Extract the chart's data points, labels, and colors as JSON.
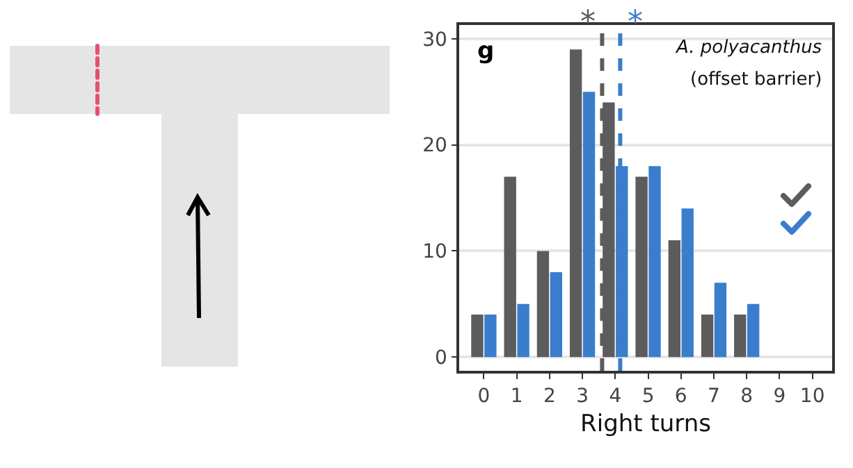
{
  "chart_data": {
    "type": "bar",
    "xlabel": "Right turns",
    "x": [
      0,
      1,
      2,
      3,
      4,
      5,
      6,
      7,
      8
    ],
    "series": [
      {
        "color": "#5c5c5c",
        "values": [
          4,
          17,
          10,
          29,
          24,
          17,
          11,
          4,
          4
        ]
      },
      {
        "color": "#3a7dcc",
        "values": [
          4,
          5,
          8,
          25,
          18,
          18,
          14,
          7,
          5
        ]
      }
    ],
    "xlim": [
      -0.75,
      10.6
    ],
    "xticks": [
      0,
      1,
      2,
      3,
      4,
      5,
      6,
      7,
      8,
      9,
      10
    ],
    "ylim": [
      -1.3,
      31.3
    ],
    "yticks": [
      0,
      10,
      20,
      30
    ],
    "grid": "y",
    "ref_lines": [
      {
        "axis": "x",
        "value": 3.6,
        "color": "#5c5c5c",
        "line_style": "dashed",
        "label": "*"
      },
      {
        "axis": "x",
        "value": 4.15,
        "color": "#3a7dcc",
        "line_style": "dashed",
        "label": "*"
      }
    ],
    "annotations": [
      "g",
      "A. polyacanthus",
      "(offset barrier)"
    ]
  }
}
